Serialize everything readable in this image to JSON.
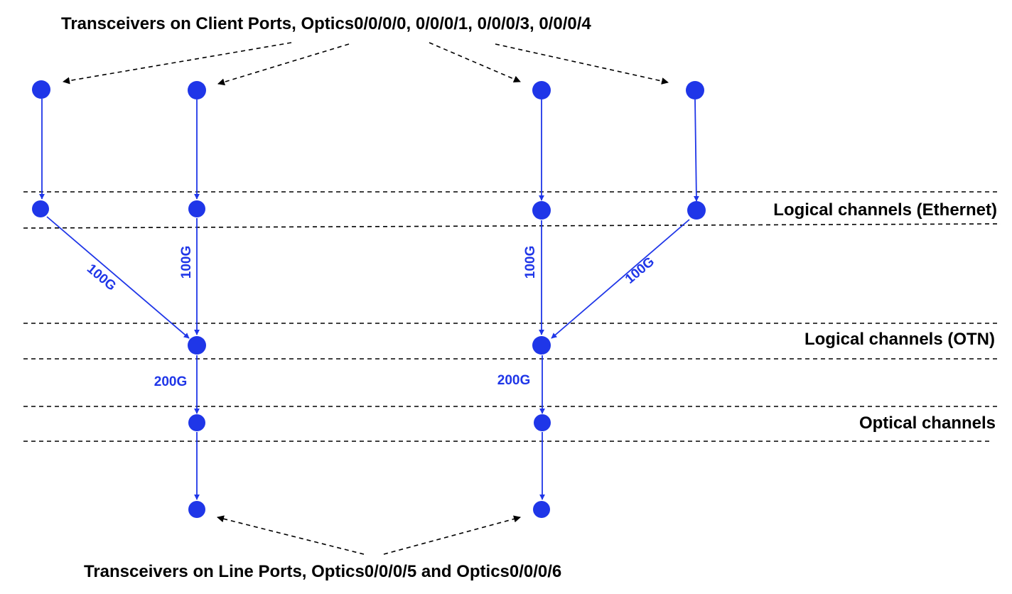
{
  "colors": {
    "node": "#1f36e8",
    "edge": "#1f36e8",
    "edge_label": "#1f36e8",
    "divider": "#000000",
    "text": "#000000",
    "background": "#ffffff"
  },
  "labels": {
    "client_ports": "Transceivers on Client Ports, Optics0/0/0/0, 0/0/0/1, 0/0/0/3, 0/0/0/4",
    "line_ports": "Transceivers on Line Ports, Optics0/0/0/5 and Optics0/0/0/6",
    "layer_ethernet": "Logical channels (Ethernet)",
    "layer_otn": "Logical channels (OTN)",
    "layer_optical": "Optical channels"
  },
  "edge_labels": {
    "eth1_to_otn1": "100G",
    "eth2_to_otn1": "100G",
    "eth3_to_otn2": "100G",
    "eth4_to_otn2": "100G",
    "otn1_to_och1": "200G",
    "otn2_to_och2": "200G"
  }
}
